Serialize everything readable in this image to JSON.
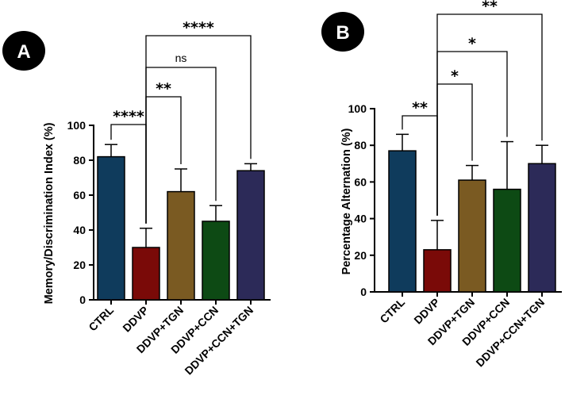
{
  "colors": {
    "CTRL": "#0f3b5c",
    "DDVP": "#7a0a08",
    "DDVP+TGN": "#7a5a22",
    "DDVP+CCN": "#0d4a14",
    "DDVP+CCN+TGN": "#2c2a58"
  },
  "chart_data": [
    {
      "panel": "A",
      "type": "bar",
      "categories": [
        "CTRL",
        "DDVP",
        "DDVP+TGN",
        "DDVP+CCN",
        "DDVP+CCN+TGN"
      ],
      "values": [
        82,
        30,
        62,
        45,
        74
      ],
      "errors": [
        7,
        11,
        13,
        9,
        4
      ],
      "ylabel": "Memory/Discrimination Index (%)",
      "ylim": [
        0,
        100
      ],
      "yticks": [
        0,
        20,
        40,
        60,
        80,
        100
      ],
      "comparisons": [
        {
          "from": 1,
          "to": 0,
          "label": "****"
        },
        {
          "from": 1,
          "to": 2,
          "label": "**"
        },
        {
          "from": 1,
          "to": 3,
          "label": "ns"
        },
        {
          "from": 1,
          "to": 4,
          "label": "****"
        }
      ]
    },
    {
      "panel": "B",
      "type": "bar",
      "categories": [
        "CTRL",
        "DDVP",
        "DDVP+TGN",
        "DDVP+CCN",
        "DDVP+CCN+TGN"
      ],
      "values": [
        77,
        23,
        61,
        56,
        70
      ],
      "errors": [
        9,
        16,
        8,
        26,
        10
      ],
      "ylabel": "Percentage Alternation (%)",
      "ylim": [
        0,
        100
      ],
      "yticks": [
        0,
        20,
        40,
        60,
        80,
        100
      ],
      "comparisons": [
        {
          "from": 1,
          "to": 0,
          "label": "**"
        },
        {
          "from": 1,
          "to": 2,
          "label": "*"
        },
        {
          "from": 1,
          "to": 3,
          "label": "*"
        },
        {
          "from": 1,
          "to": 4,
          "label": "**"
        }
      ]
    }
  ]
}
